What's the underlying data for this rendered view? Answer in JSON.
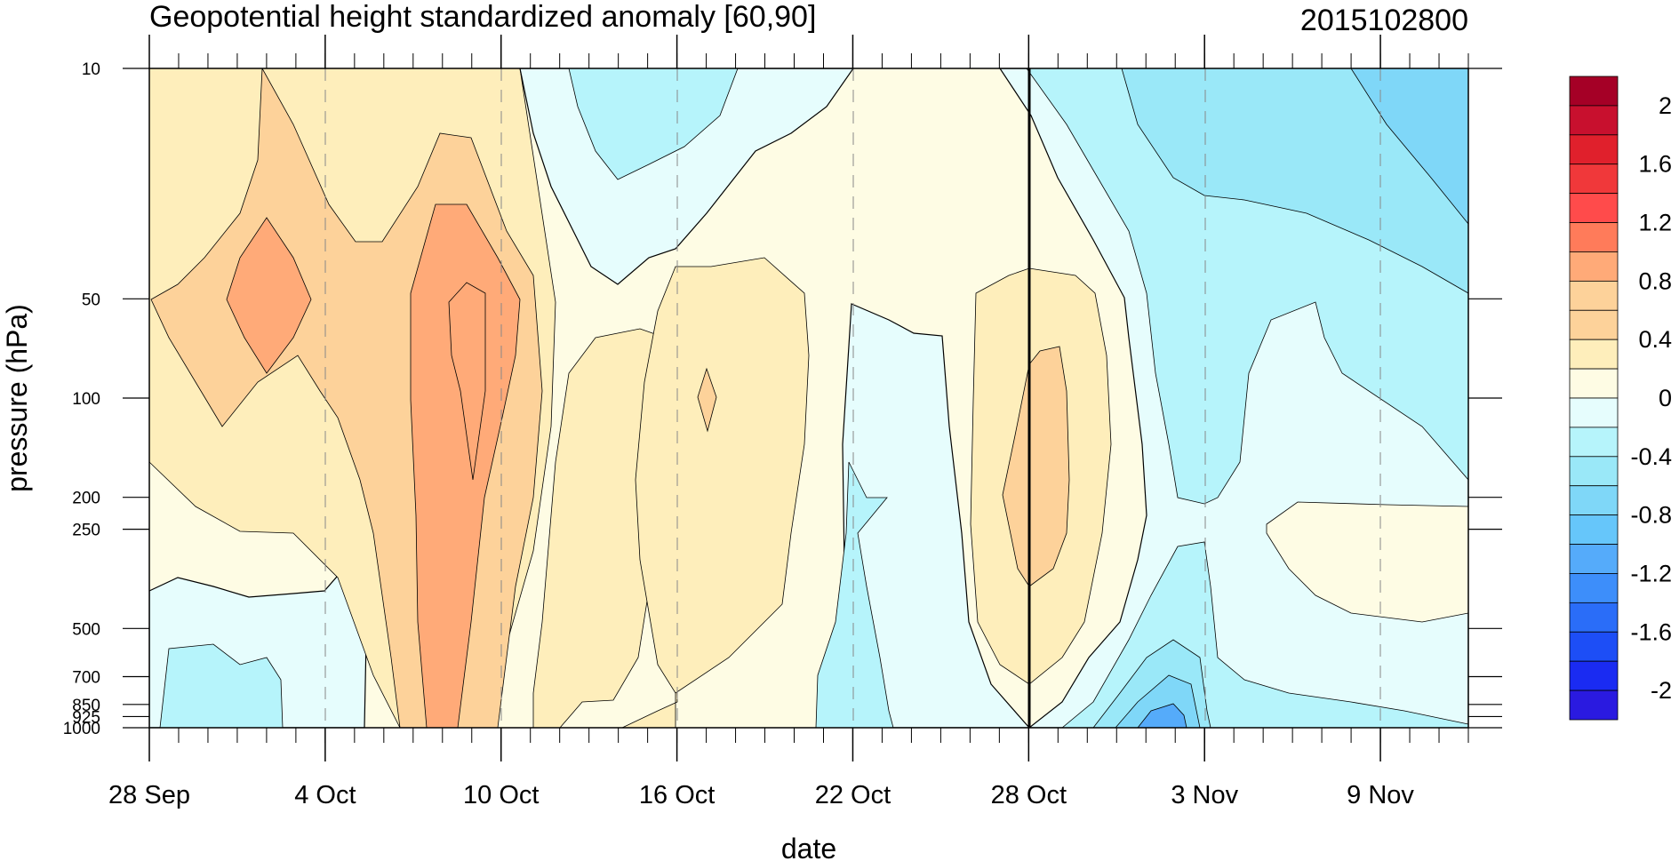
{
  "chart_data": {
    "type": "heatmap",
    "title": "Geopotential height standardized anomaly [60,90]",
    "right_title": "2015102800",
    "xlabel": "date",
    "ylabel": "pressure (hPa)",
    "x_range": [
      "2015-09-28",
      "2015-11-12"
    ],
    "y_scale": "log",
    "y_reversed": true,
    "y_ticks": [
      10,
      50,
      100,
      200,
      250,
      500,
      700,
      850,
      925,
      1000
    ],
    "y_tick_labels": [
      "10",
      "50",
      "100",
      "200",
      "250",
      "500",
      "700",
      "850",
      "925",
      "1000"
    ],
    "x_ticks": [
      {
        "date": "2015-09-28",
        "label": "28 Sep"
      },
      {
        "date": "2015-10-04",
        "label": "4 Oct"
      },
      {
        "date": "2015-10-10",
        "label": "10 Oct"
      },
      {
        "date": "2015-10-16",
        "label": "16 Oct"
      },
      {
        "date": "2015-10-22",
        "label": "22 Oct"
      },
      {
        "date": "2015-10-28",
        "label": "28 Oct"
      },
      {
        "date": "2015-11-03",
        "label": "3 Nov"
      },
      {
        "date": "2015-11-09",
        "label": "9 Nov"
      }
    ],
    "reference_line_date": "2015-10-28",
    "colorbar": {
      "labels": [
        "2",
        "1.6",
        "1.2",
        "0.8",
        "0.4",
        "0",
        "-0.4",
        "-0.8",
        "-1.2",
        "-1.6",
        "-2"
      ],
      "colors": [
        "#a50026",
        "#c8102e",
        "#e0202c",
        "#f0383a",
        "#ff4b4b",
        "#ff7b5a",
        "#ffaa78",
        "#fdd29a",
        "#fdd29a",
        "#feeebb",
        "#fefce4",
        "#e6fdfd",
        "#b6f4fb",
        "#9ae8f8",
        "#7fd7f8",
        "#66c6fa",
        "#55abfa",
        "#3d8efa",
        "#2a6df8",
        "#1d4ef6",
        "#1a2bf2",
        "#2a1ae0"
      ]
    },
    "regions": [
      {
        "name": "lower-left-negative",
        "date_range": [
          "2015-09-28",
          "2015-10-07"
        ],
        "pressure_range": [
          300,
          1000
        ],
        "value_min": -0.6,
        "value_max": -0.4
      },
      {
        "name": "early-oct-positive",
        "date_range": [
          "2015-09-28",
          "2015-10-13"
        ],
        "pressure_range": [
          10,
          700
        ],
        "value_max": 1.0
      },
      {
        "name": "mid-oct-negative-top",
        "date_range": [
          "2015-10-12",
          "2015-10-17"
        ],
        "pressure_range": [
          10,
          40
        ],
        "value_min": -0.6
      },
      {
        "name": "mid-oct-positive",
        "date_range": [
          "2015-10-14",
          "2015-10-20"
        ],
        "pressure_range": [
          45,
          700
        ],
        "value_max": 0.6
      },
      {
        "name": "late-oct-negative",
        "date_range": [
          "2015-10-20",
          "2015-10-27"
        ],
        "pressure_range": [
          50,
          1000
        ],
        "value_min": -0.6
      },
      {
        "name": "oct-28-positive",
        "date_range": [
          "2015-10-26",
          "2015-10-30"
        ],
        "pressure_range": [
          50,
          700
        ],
        "value_max": 0.8
      },
      {
        "name": "november-negative",
        "date_range": [
          "2015-10-29",
          "2015-11-12"
        ],
        "pressure_range": [
          10,
          1000
        ],
        "value_min": -0.8
      },
      {
        "name": "november-positive-mid",
        "date_range": [
          "2015-11-05",
          "2015-11-12"
        ],
        "pressure_range": [
          200,
          500
        ],
        "value_max": 0.4
      }
    ]
  }
}
